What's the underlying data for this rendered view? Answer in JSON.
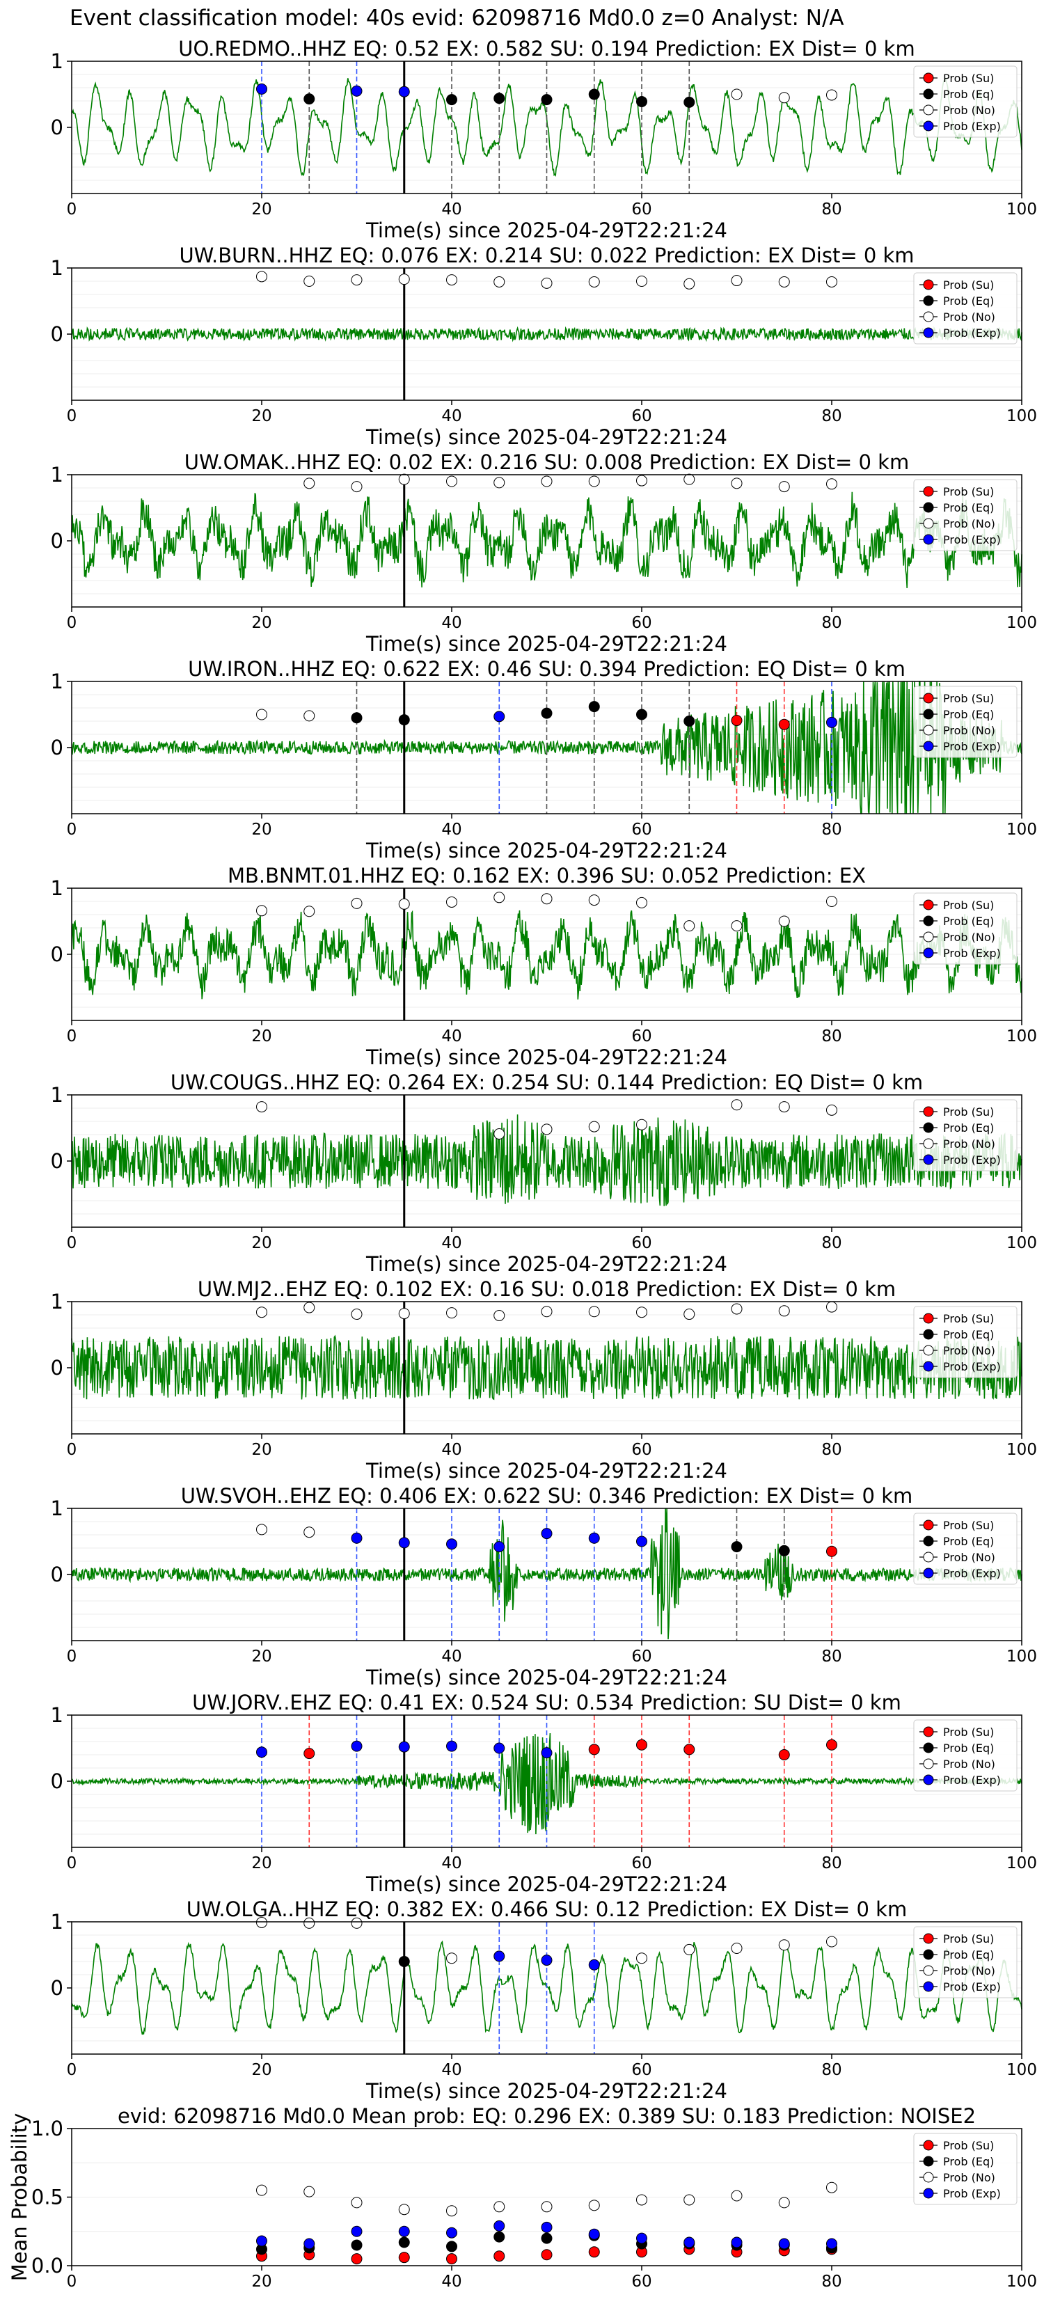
{
  "figure_title": "Event classification model: 40s evid: 62098716 Md0.0 z=0 Analyst: N/A",
  "legend": [
    {
      "label": "Prob (Su)",
      "color": "#ff0000"
    },
    {
      "label": "Prob (Eq)",
      "color": "#000000"
    },
    {
      "label": "Prob (No)",
      "color": "#ffffff"
    },
    {
      "label": "Prob (Exp)",
      "color": "#0000ff"
    }
  ],
  "colors": {
    "waveform": "#008000",
    "Su": "#ff0000",
    "Eq": "#000000",
    "No": "#ffffff",
    "Exp": "#0000ff"
  },
  "chart_data": [
    {
      "type": "line",
      "title": "UO.REDMO..HHZ   EQ: 0.52   EX: 0.582   SU: 0.194   Prediction: EX    Dist= 0 km",
      "xlabel": "Time(s) since 2025-04-29T22:21:24",
      "xlim": [
        0,
        100
      ],
      "ylim": [
        -1,
        1
      ],
      "xticks": [
        "0",
        "20",
        "40",
        "60",
        "80",
        "100"
      ],
      "yticks": [
        "1",
        "0"
      ],
      "event_marker_x": 35,
      "waveform": {
        "amp": 0.62,
        "style": "lowfreq",
        "seed": 1
      },
      "windows": [
        20,
        25,
        30,
        35,
        40,
        45,
        50,
        55,
        60,
        65,
        70,
        75,
        80
      ],
      "classes": [
        "Exp",
        "Eq",
        "Exp",
        "Exp",
        "Eq",
        "Eq",
        "Eq",
        "Eq",
        "Eq",
        "Eq",
        "No",
        "No",
        "No"
      ],
      "probs": [
        0.58,
        0.43,
        0.55,
        0.54,
        0.42,
        0.44,
        0.42,
        0.5,
        0.39,
        0.38,
        0.5,
        0.45,
        0.49
      ]
    },
    {
      "type": "line",
      "title": "UW.BURN..HHZ   EQ: 0.076   EX: 0.214   SU: 0.022   Prediction: EX    Dist= 0 km",
      "xlabel": "Time(s) since 2025-04-29T22:21:24",
      "xlim": [
        0,
        100
      ],
      "ylim": [
        -1,
        1
      ],
      "xticks": [
        "0",
        "20",
        "40",
        "60",
        "80",
        "100"
      ],
      "yticks": [
        "1",
        "0"
      ],
      "event_marker_x": 35,
      "waveform": {
        "amp": 0.09,
        "style": "noise",
        "seed": 2
      },
      "windows": [
        20,
        25,
        30,
        35,
        40,
        45,
        50,
        55,
        60,
        65,
        70,
        75,
        80
      ],
      "classes": [
        "No",
        "No",
        "No",
        "No",
        "No",
        "No",
        "No",
        "No",
        "No",
        "No",
        "No",
        "No",
        "No"
      ],
      "probs": [
        0.87,
        0.8,
        0.82,
        0.83,
        0.82,
        0.79,
        0.77,
        0.79,
        0.8,
        0.76,
        0.81,
        0.79,
        0.79
      ]
    },
    {
      "type": "line",
      "title": "UW.OMAK..HHZ   EQ: 0.02   EX: 0.216   SU: 0.008   Prediction: EX    Dist= 0 km",
      "xlabel": "Time(s) since 2025-04-29T22:21:24",
      "xlim": [
        0,
        100
      ],
      "ylim": [
        -1,
        1
      ],
      "xticks": [
        "0",
        "20",
        "40",
        "60",
        "80",
        "100"
      ],
      "yticks": [
        "1",
        "0"
      ],
      "event_marker_x": 35,
      "waveform": {
        "amp": 0.62,
        "style": "mixed",
        "seed": 3
      },
      "windows": [
        25,
        30,
        35,
        40,
        45,
        50,
        55,
        60,
        65,
        70,
        75,
        80
      ],
      "classes": [
        "No",
        "No",
        "No",
        "No",
        "No",
        "No",
        "No",
        "No",
        "No",
        "No",
        "No",
        "No"
      ],
      "probs": [
        0.87,
        0.82,
        0.93,
        0.9,
        0.88,
        0.9,
        0.9,
        0.91,
        0.93,
        0.87,
        0.82,
        0.86
      ]
    },
    {
      "type": "line",
      "title": "UW.IRON..HHZ   EQ: 0.622   EX: 0.46   SU: 0.394   Prediction: EQ    Dist= 0 km",
      "xlabel": "Time(s) since 2025-04-29T22:21:24",
      "xlim": [
        0,
        100
      ],
      "ylim": [
        -1,
        1
      ],
      "xticks": [
        "0",
        "20",
        "40",
        "60",
        "80",
        "100"
      ],
      "yticks": [
        "1",
        "0"
      ],
      "event_marker_x": 35,
      "waveform": {
        "amp": 0.1,
        "style": "burst",
        "seed": 4,
        "bursts": [
          [
            62,
            98,
            0.8
          ],
          [
            83,
            92,
            1.1
          ]
        ]
      },
      "windows": [
        20,
        25,
        30,
        35,
        45,
        50,
        55,
        60,
        65,
        70,
        75,
        80
      ],
      "classes": [
        "No",
        "No",
        "Eq",
        "Eq",
        "Exp",
        "Eq",
        "Eq",
        "Eq",
        "Eq",
        "Su",
        "Su",
        "Exp"
      ],
      "probs": [
        0.5,
        0.48,
        0.45,
        0.42,
        0.47,
        0.52,
        0.62,
        0.5,
        0.4,
        0.41,
        0.35,
        0.38
      ]
    },
    {
      "type": "line",
      "title": "MB.BNMT.01.HHZ   EQ: 0.162   EX: 0.396   SU: 0.052   Prediction: EX",
      "xlabel": "Time(s) since 2025-04-29T22:21:24",
      "xlim": [
        0,
        100
      ],
      "ylim": [
        -1,
        1
      ],
      "xticks": [
        "0",
        "20",
        "40",
        "60",
        "80",
        "100"
      ],
      "yticks": [
        "1",
        "0"
      ],
      "event_marker_x": 35,
      "waveform": {
        "amp": 0.6,
        "style": "mixed",
        "seed": 5
      },
      "windows": [
        20,
        25,
        30,
        35,
        40,
        45,
        50,
        55,
        60,
        65,
        70,
        75,
        80
      ],
      "classes": [
        "No",
        "No",
        "No",
        "No",
        "No",
        "No",
        "No",
        "No",
        "No",
        "No",
        "No",
        "No",
        "No"
      ],
      "probs": [
        0.66,
        0.65,
        0.77,
        0.76,
        0.79,
        0.86,
        0.84,
        0.82,
        0.78,
        0.43,
        0.43,
        0.5,
        0.8
      ]
    },
    {
      "type": "line",
      "title": "UW.COUGS..HHZ   EQ: 0.264   EX: 0.254   SU: 0.144   Prediction: EQ    Dist= 0 km",
      "xlabel": "Time(s) since 2025-04-29T22:21:24",
      "xlim": [
        0,
        100
      ],
      "ylim": [
        -1,
        1
      ],
      "xticks": [
        "0",
        "20",
        "40",
        "60",
        "80",
        "100"
      ],
      "yticks": [
        "1",
        "0"
      ],
      "event_marker_x": 35,
      "waveform": {
        "amp": 0.42,
        "style": "noise",
        "seed": 6,
        "bursts": [
          [
            42,
            50,
            0.35
          ],
          [
            55,
            68,
            0.3
          ]
        ]
      },
      "windows": [
        20,
        45,
        50,
        55,
        60,
        70,
        75,
        80
      ],
      "classes": [
        "No",
        "No",
        "No",
        "No",
        "No",
        "No",
        "No",
        "No"
      ],
      "probs": [
        0.82,
        0.41,
        0.48,
        0.52,
        0.55,
        0.85,
        0.82,
        0.77
      ]
    },
    {
      "type": "line",
      "title": "UW.MJ2..EHZ   EQ: 0.102   EX: 0.16   SU: 0.018   Prediction: EX    Dist= 0 km",
      "xlabel": "Time(s) since 2025-04-29T22:21:24",
      "xlim": [
        0,
        100
      ],
      "ylim": [
        -1,
        1
      ],
      "xticks": [
        "0",
        "20",
        "40",
        "60",
        "80",
        "100"
      ],
      "yticks": [
        "1",
        "0"
      ],
      "event_marker_x": 35,
      "waveform": {
        "amp": 0.48,
        "style": "noise",
        "seed": 7
      },
      "windows": [
        20,
        25,
        30,
        35,
        40,
        45,
        50,
        55,
        60,
        65,
        70,
        75,
        80
      ],
      "classes": [
        "No",
        "No",
        "No",
        "No",
        "No",
        "No",
        "No",
        "No",
        "No",
        "No",
        "No",
        "No",
        "No"
      ],
      "probs": [
        0.84,
        0.91,
        0.81,
        0.82,
        0.83,
        0.79,
        0.85,
        0.85,
        0.84,
        0.81,
        0.89,
        0.86,
        0.92
      ]
    },
    {
      "type": "line",
      "title": "UW.SVOH..EHZ   EQ: 0.406   EX: 0.622   SU: 0.346   Prediction: EX    Dist= 0 km",
      "xlabel": "Time(s) since 2025-04-29T22:21:24",
      "xlim": [
        0,
        100
      ],
      "ylim": [
        -1,
        1
      ],
      "xticks": [
        "0",
        "20",
        "40",
        "60",
        "80",
        "100"
      ],
      "yticks": [
        "1",
        "0"
      ],
      "event_marker_x": 35,
      "waveform": {
        "amp": 0.1,
        "style": "noise",
        "seed": 8,
        "bursts": [
          [
            44,
            47,
            0.8
          ],
          [
            61,
            64,
            1.2
          ],
          [
            73,
            76,
            0.4
          ]
        ]
      },
      "windows": [
        20,
        25,
        30,
        35,
        40,
        45,
        50,
        55,
        60,
        70,
        75,
        80
      ],
      "classes": [
        "No",
        "No",
        "Exp",
        "Exp",
        "Exp",
        "Exp",
        "Exp",
        "Exp",
        "Exp",
        "Eq",
        "Eq",
        "Su"
      ],
      "probs": [
        0.68,
        0.64,
        0.55,
        0.48,
        0.46,
        0.42,
        0.62,
        0.55,
        0.5,
        0.42,
        0.36,
        0.35
      ]
    },
    {
      "type": "line",
      "title": "UW.JORV..EHZ   EQ: 0.41   EX: 0.524   SU: 0.534   Prediction: SU    Dist= 0 km",
      "xlabel": "Time(s) since 2025-04-29T22:21:24",
      "xlim": [
        0,
        100
      ],
      "ylim": [
        -1,
        1
      ],
      "xticks": [
        "0",
        "20",
        "40",
        "60",
        "80",
        "100"
      ],
      "yticks": [
        "1",
        "0"
      ],
      "event_marker_x": 35,
      "waveform": {
        "amp": 0.04,
        "style": "noise",
        "seed": 9,
        "bursts": [
          [
            45,
            53,
            0.75
          ],
          [
            30,
            60,
            0.12
          ]
        ]
      },
      "windows": [
        20,
        25,
        30,
        35,
        40,
        45,
        50,
        55,
        60,
        65,
        75,
        80
      ],
      "classes": [
        "Exp",
        "Su",
        "Exp",
        "Exp",
        "Exp",
        "Exp",
        "Exp",
        "Su",
        "Su",
        "Su",
        "Su",
        "Su"
      ],
      "probs": [
        0.44,
        0.42,
        0.53,
        0.52,
        0.53,
        0.5,
        0.43,
        0.48,
        0.55,
        0.48,
        0.4,
        0.55
      ]
    },
    {
      "type": "line",
      "title": "UW.OLGA..HHZ   EQ: 0.382   EX: 0.466   SU: 0.12   Prediction: EX    Dist= 0 km",
      "xlabel": "Time(s) since 2025-04-29T22:21:24",
      "xlim": [
        0,
        100
      ],
      "ylim": [
        -1,
        1
      ],
      "xticks": [
        "0",
        "20",
        "40",
        "60",
        "80",
        "100"
      ],
      "yticks": [
        "1",
        "0"
      ],
      "event_marker_x": 35,
      "waveform": {
        "amp": 0.65,
        "style": "lowfreq",
        "seed": 10
      },
      "windows": [
        20,
        25,
        30,
        35,
        40,
        45,
        50,
        55,
        60,
        65,
        70,
        75,
        80
      ],
      "classes": [
        "No",
        "No",
        "No",
        "Eq",
        "No",
        "Exp",
        "Exp",
        "Exp",
        "No",
        "No",
        "No",
        "No",
        "No"
      ],
      "probs": [
        0.99,
        0.98,
        0.98,
        0.4,
        0.45,
        0.48,
        0.42,
        0.35,
        0.45,
        0.58,
        0.6,
        0.65,
        0.7
      ]
    },
    {
      "type": "scatter",
      "title": "evid: 62098716  Md0.0   Mean prob:   EQ: 0.296  EX: 0.389  SU: 0.183   Prediction: NOISE2",
      "ylabel": "Mean Probability",
      "xlim": [
        0,
        100
      ],
      "ylim": [
        0,
        1
      ],
      "xticks": [
        "0",
        "20",
        "40",
        "60",
        "80",
        "100"
      ],
      "yticks": [
        "0.0",
        "0.5",
        "1.0"
      ],
      "x": [
        20,
        25,
        30,
        35,
        40,
        45,
        50,
        55,
        60,
        65,
        70,
        75,
        80
      ],
      "series": [
        {
          "name": "Prob (Su)",
          "cls": "Su",
          "values": [
            0.07,
            0.08,
            0.05,
            0.06,
            0.05,
            0.07,
            0.08,
            0.1,
            0.1,
            0.12,
            0.1,
            0.11,
            0.12
          ]
        },
        {
          "name": "Prob (Eq)",
          "cls": "Eq",
          "values": [
            0.12,
            0.13,
            0.15,
            0.17,
            0.14,
            0.21,
            0.2,
            0.22,
            0.16,
            0.16,
            0.15,
            0.15,
            0.13
          ]
        },
        {
          "name": "Prob (No)",
          "cls": "No",
          "values": [
            0.55,
            0.54,
            0.46,
            0.41,
            0.4,
            0.43,
            0.43,
            0.44,
            0.48,
            0.48,
            0.51,
            0.46,
            0.57
          ]
        },
        {
          "name": "Prob (Exp)",
          "cls": "Exp",
          "values": [
            0.18,
            0.16,
            0.25,
            0.25,
            0.24,
            0.29,
            0.28,
            0.23,
            0.2,
            0.17,
            0.17,
            0.16,
            0.16
          ]
        }
      ]
    }
  ]
}
